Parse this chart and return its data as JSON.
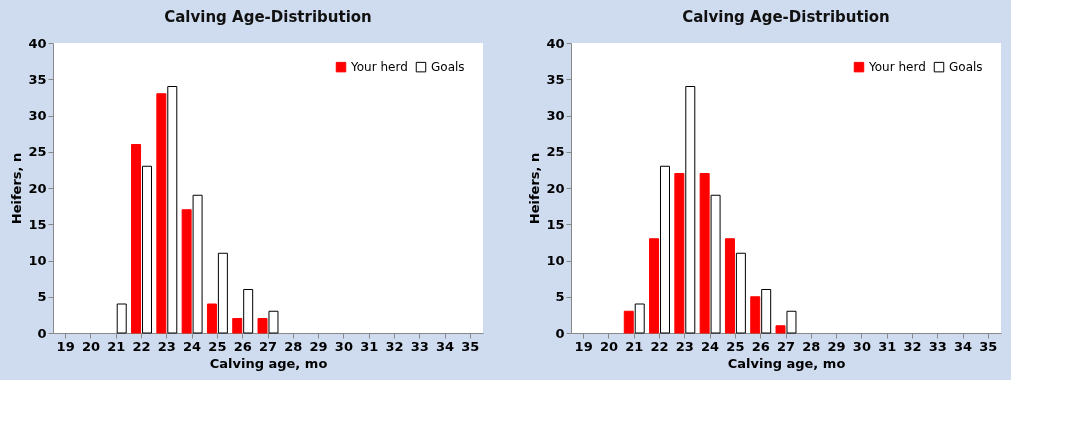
{
  "chart_data": [
    {
      "type": "bar",
      "title": "Calving Age-Distribution",
      "xlabel": "Calving age, mo",
      "ylabel": "Heifers, n",
      "categories": [
        "19",
        "20",
        "21",
        "22",
        "23",
        "24",
        "25",
        "26",
        "27",
        "28",
        "29",
        "30",
        "31",
        "32",
        "33",
        "34",
        "35"
      ],
      "series": [
        {
          "name": "Your herd",
          "color": "#ff0000",
          "values": [
            null,
            null,
            null,
            26,
            33,
            17,
            4,
            2,
            2,
            null,
            null,
            null,
            null,
            null,
            null,
            null,
            null
          ]
        },
        {
          "name": "Goals",
          "color": "#ffffff",
          "values": [
            null,
            null,
            4,
            23,
            34,
            19,
            11,
            6,
            3,
            null,
            null,
            null,
            null,
            null,
            null,
            null,
            null
          ]
        }
      ],
      "ylim": [
        0,
        40
      ],
      "yticks": [
        0,
        5,
        10,
        15,
        20,
        25,
        30,
        35,
        40
      ],
      "grid": false,
      "legend": "top right"
    },
    {
      "type": "bar",
      "title": "Calving Age-Distribution",
      "xlabel": "Calving age, mo",
      "ylabel": "Heifers, n",
      "categories": [
        "19",
        "20",
        "21",
        "22",
        "23",
        "24",
        "25",
        "26",
        "27",
        "28",
        "29",
        "30",
        "31",
        "32",
        "33",
        "34",
        "35"
      ],
      "series": [
        {
          "name": "Your herd",
          "color": "#ff0000",
          "values": [
            null,
            null,
            3,
            13,
            22,
            22,
            13,
            5,
            1,
            null,
            null,
            null,
            null,
            null,
            null,
            null,
            null
          ]
        },
        {
          "name": "Goals",
          "color": "#ffffff",
          "values": [
            null,
            null,
            4,
            23,
            34,
            19,
            11,
            6,
            3,
            null,
            null,
            null,
            null,
            null,
            null,
            null,
            null
          ]
        }
      ],
      "ylim": [
        0,
        40
      ],
      "yticks": [
        0,
        5,
        10,
        15,
        20,
        25,
        30,
        35,
        40
      ],
      "grid": false,
      "legend": "top right"
    }
  ]
}
